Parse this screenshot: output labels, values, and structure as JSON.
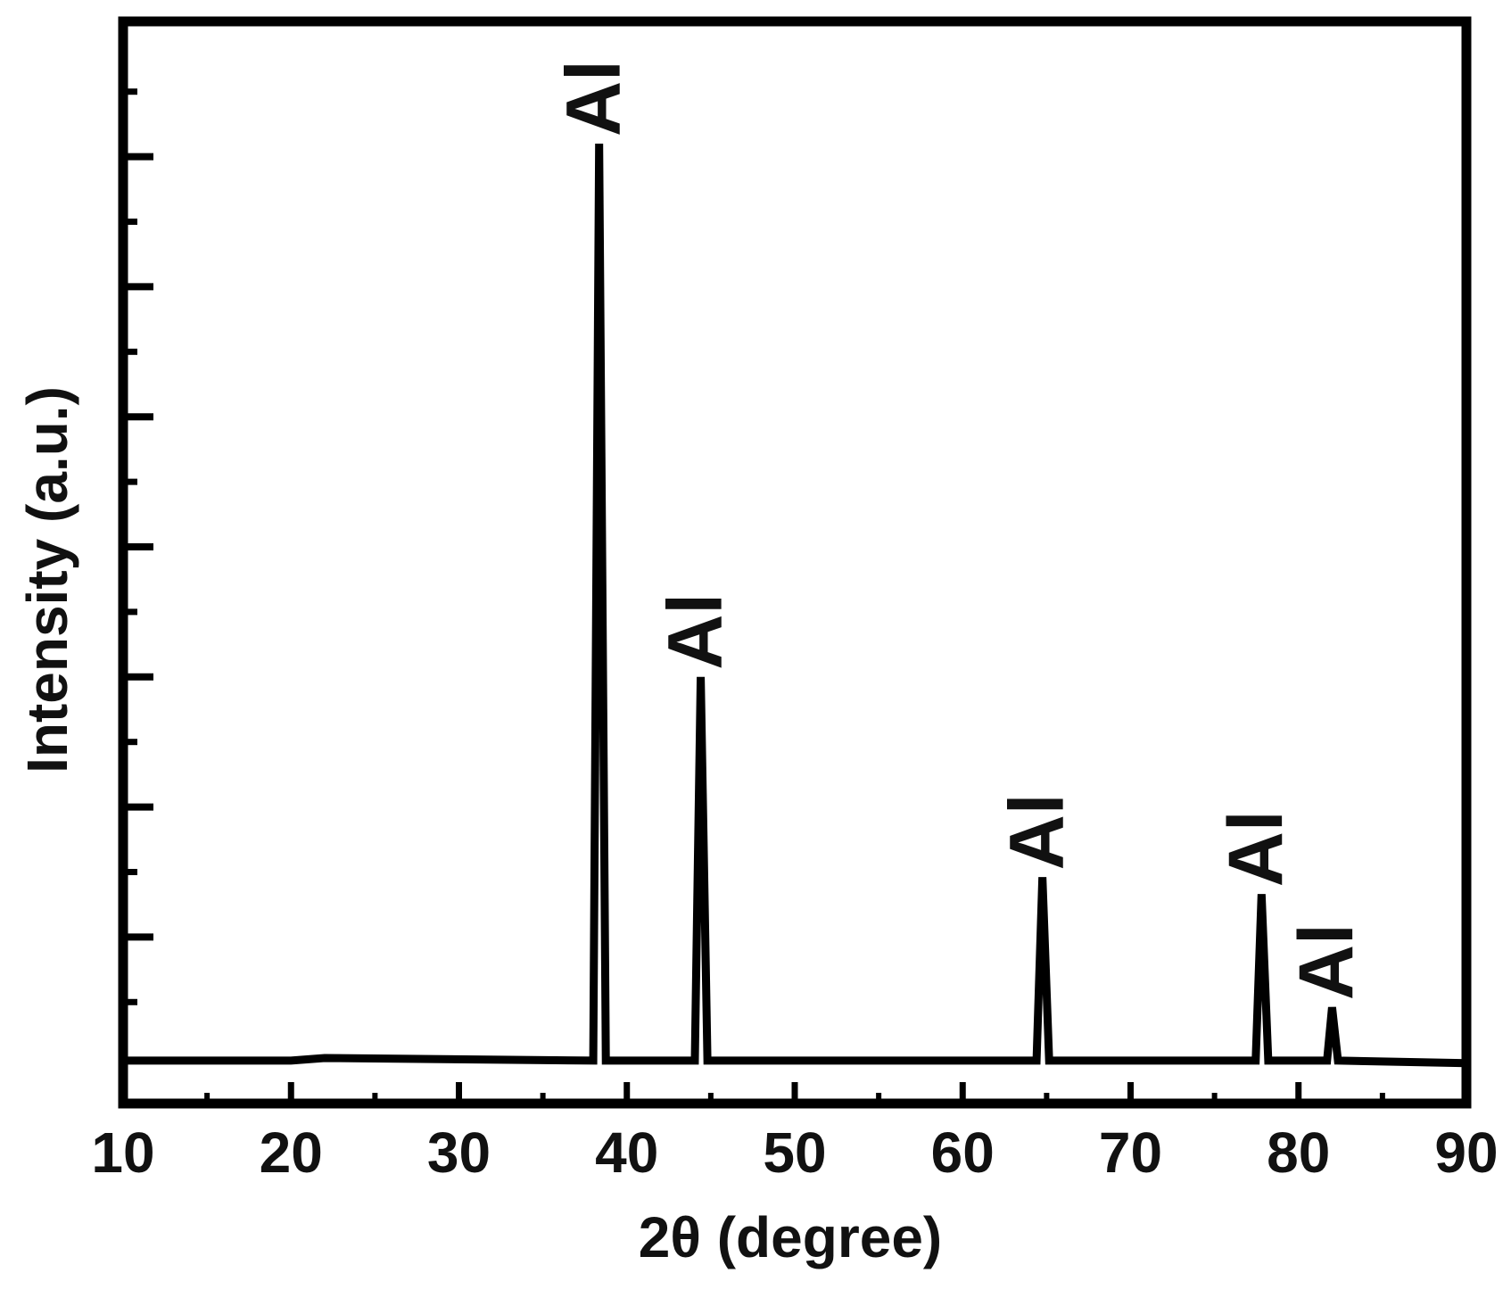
{
  "chart_data": {
    "type": "line",
    "x_label": "2θ (degree)",
    "y_label": "Intensity (a.u.)",
    "x": [
      10,
      20,
      22,
      38.0,
      38.35,
      38.75,
      44.05,
      44.4,
      44.8,
      64.4,
      64.75,
      65.15,
      77.45,
      77.8,
      78.2,
      81.7,
      82.0,
      82.35,
      90
    ],
    "series": [
      {
        "color": "#000000",
        "values": [
          0.05,
          0.05,
          0.07,
          0.05,
          7.1,
          0.05,
          0.05,
          3.0,
          0.05,
          0.05,
          1.46,
          0.05,
          0.05,
          1.33,
          0.05,
          0.05,
          0.46,
          0.05,
          0.03
        ]
      }
    ],
    "xlim": [
      10,
      90
    ],
    "xticks": [
      10,
      20,
      30,
      40,
      50,
      60,
      70,
      80,
      90
    ],
    "xminor_ticks": [
      15,
      25,
      35,
      45,
      55,
      65,
      75,
      85
    ],
    "ylim": [
      -0.28,
      8.04
    ],
    "yticks": [
      1,
      2,
      3,
      4,
      5,
      6,
      7
    ],
    "yminor_ticks": [
      0.5,
      1.5,
      2.5,
      3.5,
      4.5,
      5.5,
      6.5,
      7.5
    ],
    "annotations": [
      {
        "text": "Al",
        "x": 38.35,
        "y": 7.1
      },
      {
        "text": "Al",
        "x": 44.4,
        "y": 3.0
      },
      {
        "text": "Al",
        "x": 64.75,
        "y": 1.46
      },
      {
        "text": "Al",
        "x": 77.8,
        "y": 1.33
      },
      {
        "text": "Al",
        "x": 82.0,
        "y": 0.46
      }
    ]
  }
}
